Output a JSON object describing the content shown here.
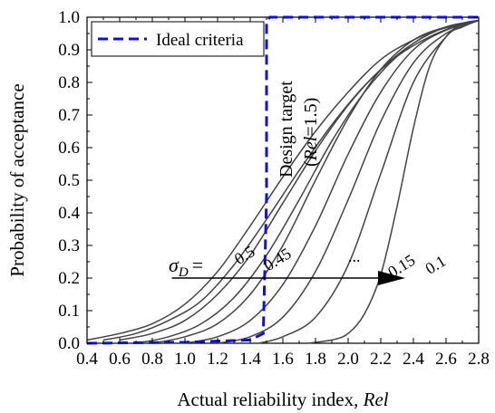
{
  "chart_data": {
    "type": "line",
    "xlabel": "Actual reliability index, ",
    "xlabel_italic": "Rel",
    "ylabel": "Probability of acceptance",
    "xlim": [
      0.4,
      2.8
    ],
    "ylim": [
      0.0,
      1.0
    ],
    "xticks": [
      0.4,
      0.6,
      0.8,
      1.0,
      1.2,
      1.4,
      1.6,
      1.8,
      2.0,
      2.2,
      2.4,
      2.6,
      2.8
    ],
    "yticks": [
      0.0,
      0.1,
      0.2,
      0.3,
      0.4,
      0.5,
      0.6,
      0.7,
      0.8,
      0.9,
      1.0
    ],
    "xtick_labels": [
      "0.4",
      "0.6",
      "0.8",
      "1.0",
      "1.2",
      "1.4",
      "1.6",
      "1.8",
      "2.0",
      "2.2",
      "2.4",
      "2.6",
      "2.8"
    ],
    "ytick_labels": [
      "0.0",
      "0.1",
      "0.2",
      "0.3",
      "0.4",
      "0.5",
      "0.6",
      "0.7",
      "0.8",
      "0.9",
      "1.0"
    ],
    "grid": false,
    "legend": {
      "position": "top-left",
      "entries": [
        "Ideal criteria"
      ]
    },
    "ideal_criteria": {
      "name": "Ideal criteria",
      "color": "#1010dd",
      "style": "dashed",
      "x": [
        0.4,
        1.0,
        1.4,
        1.48,
        1.5,
        1.5,
        1.52,
        2.8
      ],
      "y": [
        0.0,
        0.003,
        0.01,
        0.03,
        0.45,
        0.985,
        1.0,
        1.0
      ]
    },
    "design_target": {
      "line1": "Design target",
      "line2_prefix": "(",
      "line2_italic": "Rel",
      "line2_suffix": "=1.5)",
      "x": 1.5
    },
    "curve_color": "#444444",
    "series": [
      {
        "sigma": "0.5",
        "x": [
          0.4,
          0.6,
          0.8,
          1.0,
          1.2,
          1.4,
          1.6,
          1.8,
          2.0,
          2.2,
          2.4,
          2.6,
          2.8
        ],
        "y": [
          0.01,
          0.03,
          0.06,
          0.12,
          0.22,
          0.36,
          0.51,
          0.65,
          0.77,
          0.87,
          0.93,
          0.97,
          0.99
        ]
      },
      {
        "sigma": "0.45",
        "x": [
          0.5,
          0.7,
          0.9,
          1.1,
          1.3,
          1.5,
          1.7,
          1.9,
          2.1,
          2.3,
          2.5,
          2.7,
          2.8
        ],
        "y": [
          0.01,
          0.03,
          0.07,
          0.13,
          0.24,
          0.38,
          0.53,
          0.67,
          0.79,
          0.88,
          0.94,
          0.98,
          0.99
        ]
      },
      {
        "sigma": "0.4",
        "x": [
          0.6,
          0.8,
          1.0,
          1.2,
          1.4,
          1.6,
          1.8,
          2.0,
          2.2,
          2.4,
          2.6,
          2.8
        ],
        "y": [
          0.01,
          0.03,
          0.07,
          0.15,
          0.27,
          0.43,
          0.59,
          0.73,
          0.84,
          0.92,
          0.97,
          0.99
        ]
      },
      {
        "sigma": "0.35",
        "x": [
          0.7,
          0.9,
          1.1,
          1.3,
          1.5,
          1.7,
          1.9,
          2.1,
          2.3,
          2.5,
          2.7,
          2.8
        ],
        "y": [
          0.0,
          0.02,
          0.06,
          0.14,
          0.27,
          0.44,
          0.62,
          0.77,
          0.88,
          0.95,
          0.98,
          0.99
        ]
      },
      {
        "sigma": "0.3",
        "x": [
          0.8,
          1.0,
          1.2,
          1.4,
          1.6,
          1.8,
          2.0,
          2.2,
          2.4,
          2.6,
          2.8
        ],
        "y": [
          0.0,
          0.02,
          0.06,
          0.15,
          0.3,
          0.5,
          0.69,
          0.84,
          0.93,
          0.97,
          0.99
        ]
      },
      {
        "sigma": "0.25",
        "x": [
          1.0,
          1.2,
          1.4,
          1.6,
          1.8,
          2.0,
          2.2,
          2.4,
          2.6,
          2.8
        ],
        "y": [
          0.0,
          0.02,
          0.07,
          0.18,
          0.36,
          0.58,
          0.77,
          0.9,
          0.96,
          0.99
        ]
      },
      {
        "sigma": "0.2",
        "x": [
          1.2,
          1.4,
          1.6,
          1.8,
          2.0,
          2.2,
          2.4,
          2.6,
          2.8
        ],
        "y": [
          0.0,
          0.02,
          0.08,
          0.22,
          0.44,
          0.68,
          0.86,
          0.95,
          0.99
        ]
      },
      {
        "sigma": "0.15",
        "x": [
          1.45,
          1.6,
          1.8,
          2.0,
          2.2,
          2.4,
          2.6,
          2.7,
          2.8
        ],
        "y": [
          0.0,
          0.02,
          0.08,
          0.24,
          0.52,
          0.8,
          0.94,
          0.97,
          0.99
        ]
      },
      {
        "sigma": "0.1",
        "x": [
          1.75,
          1.9,
          2.0,
          2.1,
          2.2,
          2.3,
          2.4,
          2.5,
          2.6,
          2.7,
          2.8
        ],
        "y": [
          0.0,
          0.01,
          0.03,
          0.09,
          0.21,
          0.42,
          0.66,
          0.85,
          0.94,
          0.98,
          0.99
        ]
      }
    ],
    "annotations": {
      "sigma_symbol": "σ",
      "sigma_subscript": "D",
      "sigma_equals": "=",
      "labels": [
        {
          "text": "0.5",
          "x": 1.33,
          "y": 0.24
        },
        {
          "text": "0.45",
          "x": 1.51,
          "y": 0.22
        },
        {
          "text": "...",
          "x": 2.0,
          "y": 0.25
        },
        {
          "text": "0.15",
          "x": 2.27,
          "y": 0.2
        },
        {
          "text": "0.1",
          "x": 2.5,
          "y": 0.21
        }
      ],
      "arrow": {
        "x_start": 0.92,
        "x_end": 2.35,
        "y": 0.2
      }
    }
  }
}
